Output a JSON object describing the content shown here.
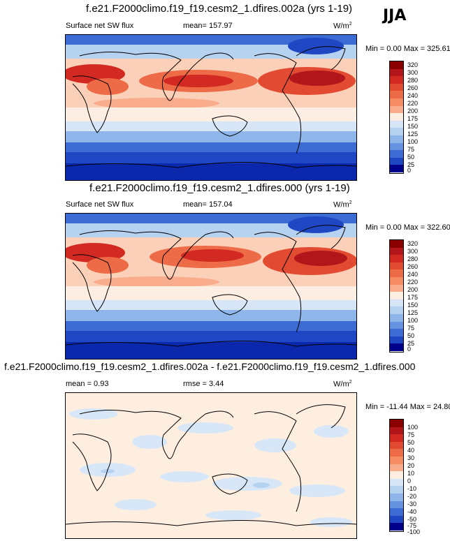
{
  "season": "JJA",
  "panels": [
    {
      "title": "f.e21.F2000climo.f19_f19.cesm2_1.dfires.002a (yrs 1-19)",
      "variable": "Surface net SW flux",
      "mean_label": "mean= 157.97",
      "units_base": "W/m",
      "units_exp": "2",
      "minmax": "Min =   0.00 Max = 325.61",
      "colorbar_labels": [
        "320",
        "300",
        "280",
        "260",
        "240",
        "220",
        "200",
        "175",
        "150",
        "125",
        "100",
        "75",
        "50",
        "25",
        "0"
      ]
    },
    {
      "title": "f.e21.F2000climo.f19_f19.cesm2_1.dfires.000 (yrs 1-19)",
      "variable": "Surface net SW flux",
      "mean_label": "mean= 157.04",
      "units_base": "W/m",
      "units_exp": "2",
      "minmax": "Min =   0.00 Max = 322.60",
      "colorbar_labels": [
        "320",
        "300",
        "280",
        "260",
        "240",
        "220",
        "200",
        "175",
        "150",
        "125",
        "100",
        "75",
        "50",
        "25",
        "0"
      ]
    },
    {
      "title": "f.e21.F2000climo.f19_f19.cesm2_1.dfires.002a - f.e21.F2000climo.f19_f19.cesm2_1.dfires.000",
      "variable": "mean =   0.93",
      "mean_label": "rmse =   3.44",
      "units_base": "W/m",
      "units_exp": "2",
      "minmax": "Min = -11.44 Max =  24.80",
      "colorbar_labels": [
        "100",
        "75",
        "50",
        "40",
        "30",
        "20",
        "10",
        "0",
        "-10",
        "-20",
        "-30",
        "-40",
        "-50",
        "-75",
        "-100"
      ]
    }
  ],
  "colors": {
    "abs_scale": [
      "#8b0000",
      "#b2161a",
      "#d22a23",
      "#e24a31",
      "#ee6b47",
      "#f58c64",
      "#f8ac8c",
      "#fbd0b8",
      "#fdeee3",
      "#d6e6f7",
      "#b6d2f1",
      "#8fb6ea",
      "#6593df",
      "#3c6cd3",
      "#1f47c4",
      "#0b28ad",
      "#00008a"
    ],
    "diff_scale": [
      "#8b0000",
      "#b2161a",
      "#d22a23",
      "#e24a31",
      "#ee6b47",
      "#f58c64",
      "#f8ac8c",
      "#fbd6c4",
      "#fdeee0",
      "#d8e7f8",
      "#b6d2f1",
      "#8fb6ea",
      "#6593df",
      "#3c6cd3",
      "#1f47c4",
      "#0b28ad",
      "#00008a"
    ]
  }
}
